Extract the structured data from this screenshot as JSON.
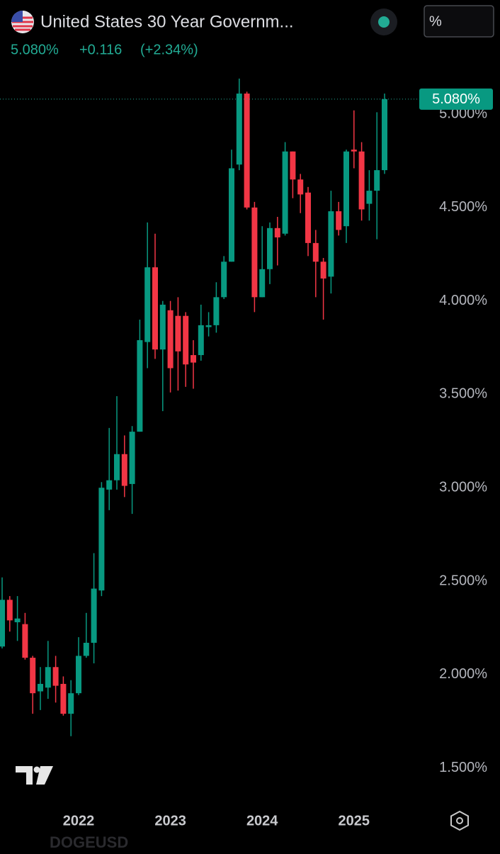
{
  "header": {
    "title": "United States 30 Year Governm...",
    "price": "5.080%",
    "change": "+0.116",
    "change_pct": "(+2.34%)",
    "unit_button": "%"
  },
  "watermark": "DOGEUSD",
  "chart_data": {
    "type": "candlestick",
    "up_color": "#089981",
    "down_color": "#f23645",
    "categories": [
      null,
      null,
      null,
      null,
      null,
      null,
      null,
      null,
      null,
      null,
      "2022",
      null,
      null,
      null,
      null,
      null,
      null,
      null,
      null,
      null,
      null,
      null,
      "2023",
      null,
      null,
      null,
      null,
      null,
      null,
      null,
      null,
      null,
      null,
      null,
      "2024",
      null,
      null,
      null,
      null,
      null,
      null,
      null,
      null,
      null,
      null,
      null,
      "2025",
      null,
      null,
      null,
      null
    ],
    "open": [
      2.15,
      2.4,
      2.28,
      2.27,
      2.09,
      1.91,
      1.93,
      2.04,
      1.95,
      1.79,
      1.9,
      2.1,
      2.17,
      2.45,
      2.99,
      3.04,
      3.18,
      3.02,
      3.3,
      3.78,
      4.18,
      3.74,
      3.95,
      3.92,
      3.92,
      3.71,
      3.71,
      3.86,
      3.87,
      4.02,
      4.21,
      4.73,
      5.11,
      4.5,
      4.02,
      4.17,
      4.39,
      4.36,
      4.8,
      4.65,
      4.58,
      4.31,
      4.21,
      4.13,
      4.48,
      4.4,
      4.81,
      4.8,
      4.52,
      4.59,
      4.7
    ],
    "high": [
      2.52,
      2.42,
      2.42,
      2.33,
      2.1,
      2.04,
      2.18,
      2.1,
      1.99,
      1.97,
      2.2,
      2.33,
      2.65,
      3.03,
      3.32,
      3.49,
      3.28,
      3.33,
      3.9,
      4.42,
      4.36,
      4.0,
      4.0,
      4.02,
      3.94,
      3.79,
      3.98,
      3.94,
      4.1,
      4.24,
      4.81,
      5.19,
      5.12,
      4.53,
      4.4,
      4.42,
      4.45,
      4.85,
      4.8,
      4.68,
      4.61,
      4.38,
      4.23,
      4.59,
      4.53,
      4.81,
      5.02,
      4.85,
      4.7,
      5.01,
      5.11
    ],
    "low": [
      2.14,
      2.23,
      2.18,
      2.08,
      1.79,
      1.81,
      1.87,
      1.85,
      1.78,
      1.67,
      1.89,
      2.09,
      2.06,
      2.42,
      2.88,
      2.99,
      2.95,
      2.86,
      3.3,
      3.64,
      3.69,
      3.41,
      3.51,
      3.52,
      3.54,
      3.53,
      3.68,
      3.81,
      3.83,
      4.01,
      4.21,
      4.7,
      4.49,
      3.94,
      4.02,
      4.09,
      4.19,
      4.35,
      4.55,
      4.47,
      4.24,
      4.02,
      3.9,
      4.04,
      4.35,
      4.31,
      4.71,
      4.43,
      4.43,
      4.33,
      4.68
    ],
    "close": [
      2.4,
      2.29,
      2.3,
      2.09,
      1.9,
      1.95,
      2.04,
      1.94,
      1.79,
      1.9,
      2.1,
      2.17,
      2.46,
      3.0,
      3.04,
      3.18,
      3.01,
      3.3,
      3.79,
      4.18,
      3.74,
      3.98,
      3.64,
      3.73,
      3.66,
      3.67,
      3.87,
      3.87,
      4.02,
      4.21,
      4.71,
      5.11,
      4.5,
      4.02,
      4.17,
      4.39,
      4.34,
      4.8,
      4.65,
      4.57,
      4.31,
      4.21,
      4.12,
      4.48,
      4.38,
      4.8,
      4.8,
      4.49,
      4.59,
      4.7,
      5.08
    ],
    "ylim": [
      1.3,
      5.2
    ],
    "yticks": [
      {
        "value": 1.5,
        "label": "1.500%"
      },
      {
        "value": 2,
        "label": "2.000%"
      },
      {
        "value": 2.5,
        "label": "2.500%"
      },
      {
        "value": 3,
        "label": "3.000%"
      },
      {
        "value": 3.5,
        "label": "3.500%"
      },
      {
        "value": 4,
        "label": "4.000%"
      },
      {
        "value": 4.5,
        "label": "4.500%"
      },
      {
        "value": 5,
        "label": "5.000%"
      }
    ]
  }
}
